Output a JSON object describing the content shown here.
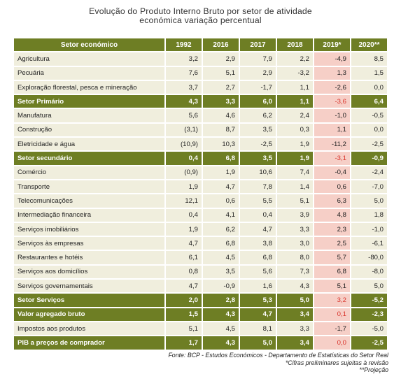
{
  "title_line1": "Evolução do Produto Interno Bruto por setor de atividade",
  "title_line2": "económica variação percentual",
  "columns": [
    "Setor económico",
    "1992",
    "2016",
    "2017",
    "2018",
    "2019*",
    "2020**"
  ],
  "rows": [
    {
      "label": "Agricultura",
      "v": [
        "3,2",
        "2,9",
        "7,9",
        "2,2",
        "-4,9",
        "8,5"
      ],
      "total": false
    },
    {
      "label": "Pecuária",
      "v": [
        "7,6",
        "5,1",
        "2,9",
        "-3,2",
        "1,3",
        "1,5"
      ],
      "total": false
    },
    {
      "label": "Exploração florestal, pesca e mineração",
      "v": [
        "3,7",
        "2,7",
        "-1,7",
        "1,1",
        "-2,6",
        "0,0"
      ],
      "total": false
    },
    {
      "label": "Setor Primário",
      "v": [
        "4,3",
        "3,3",
        "6,0",
        "1,1",
        "-3,6",
        "6,4"
      ],
      "total": true
    },
    {
      "label": "Manufatura",
      "v": [
        "5,6",
        "4,6",
        "6,2",
        "2,4",
        "-1,0",
        "-0,5"
      ],
      "total": false
    },
    {
      "label": "Construção",
      "v": [
        "(3,1)",
        "8,7",
        "3,5",
        "0,3",
        "1,1",
        "0,0"
      ],
      "total": false
    },
    {
      "label": "Eletricidade e água",
      "v": [
        "(10,9)",
        "10,3",
        "-2,5",
        "1,9",
        "-11,2",
        "-2,5"
      ],
      "total": false
    },
    {
      "label": "Setor secundário",
      "v": [
        "0,4",
        "6,8",
        "3,5",
        "1,9",
        "-3,1",
        "-0,9"
      ],
      "total": true
    },
    {
      "label": "Comércio",
      "v": [
        "(0,9)",
        "1,9",
        "10,6",
        "7,4",
        "-0,4",
        "-2,4"
      ],
      "total": false
    },
    {
      "label": "Transporte",
      "v": [
        "1,9",
        "4,7",
        "7,8",
        "1,4",
        "0,6",
        "-7,0"
      ],
      "total": false
    },
    {
      "label": "Telecomunicações",
      "v": [
        "12,1",
        "0,6",
        "5,5",
        "5,1",
        "6,3",
        "5,0"
      ],
      "total": false
    },
    {
      "label": "Intermediação financeira",
      "v": [
        "0,4",
        "4,1",
        "0,4",
        "3,9",
        "4,8",
        "1,8"
      ],
      "total": false
    },
    {
      "label": "Serviços imobiliários",
      "v": [
        "1,9",
        "6,2",
        "4,7",
        "3,3",
        "2,3",
        "-1,0"
      ],
      "total": false
    },
    {
      "label": "Serviços às empresas",
      "v": [
        "4,7",
        "6,8",
        "3,8",
        "3,0",
        "2,5",
        "-6,1"
      ],
      "total": false
    },
    {
      "label": "Restaurantes e hotéis",
      "v": [
        "6,1",
        "4,5",
        "6,8",
        "8,0",
        "5,7",
        "-80,0"
      ],
      "total": false
    },
    {
      "label": "Serviços aos domicílios",
      "v": [
        "0,8",
        "3,5",
        "5,6",
        "7,3",
        "6,8",
        "-8,0"
      ],
      "total": false
    },
    {
      "label": "Serviços governamentais",
      "v": [
        "4,7",
        "-0,9",
        "1,6",
        "4,3",
        "5,1",
        "5,0"
      ],
      "total": false
    },
    {
      "label": "Setor Serviços",
      "v": [
        "2,0",
        "2,8",
        "5,3",
        "5,0",
        "3,2",
        "-5,2"
      ],
      "total": true
    },
    {
      "label": "Valor agregado bruto",
      "v": [
        "1,5",
        "4,3",
        "4,7",
        "3,4",
        "0,1",
        "-2,3"
      ],
      "total": true
    },
    {
      "label": "Impostos aos produtos",
      "v": [
        "5,1",
        "4,5",
        "8,1",
        "3,3",
        "-1,7",
        "-5,0"
      ],
      "total": false
    },
    {
      "label": "PIB a preços de comprador",
      "v": [
        "1,7",
        "4,3",
        "5,0",
        "3,4",
        "0,0",
        "-2,5"
      ],
      "total": true
    }
  ],
  "footer": {
    "source": "Fonte: BCP - Estudos Económicos  - Departamento de Estatísticas  do Setor Real",
    "note1": "*Cifras preliminares sujeitas à revisão",
    "note2": "**Projeção"
  }
}
